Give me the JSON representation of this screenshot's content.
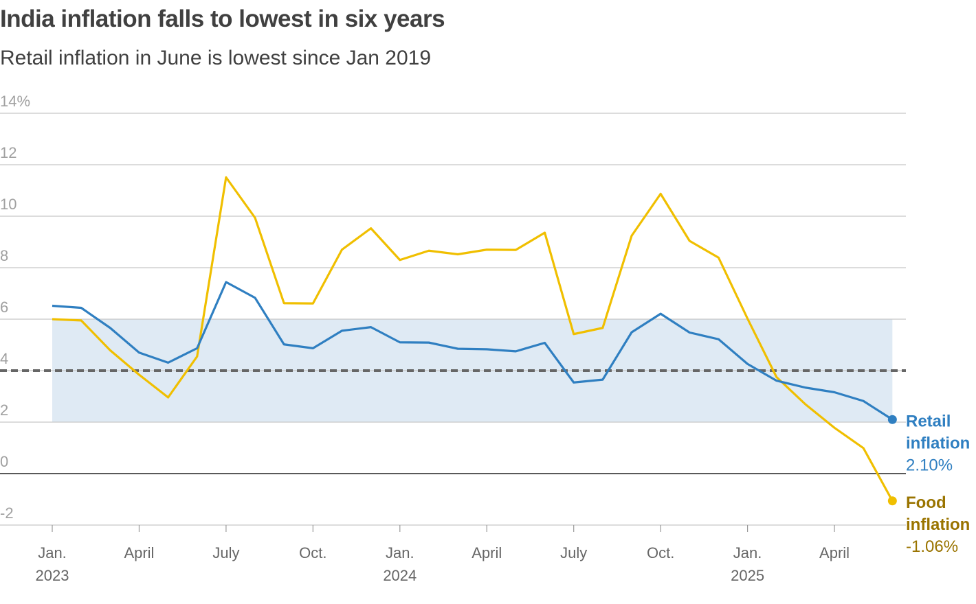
{
  "chart_data": {
    "type": "line",
    "title": "India inflation falls to lowest in six years",
    "subtitle": "Retail inflation in June is lowest since Jan 2019",
    "x": [
      "2023-01",
      "2023-02",
      "2023-03",
      "2023-04",
      "2023-05",
      "2023-06",
      "2023-07",
      "2023-08",
      "2023-09",
      "2023-10",
      "2023-11",
      "2023-12",
      "2024-01",
      "2024-02",
      "2024-03",
      "2024-04",
      "2024-05",
      "2024-06",
      "2024-07",
      "2024-08",
      "2024-09",
      "2024-10",
      "2024-11",
      "2024-12",
      "2025-01",
      "2025-02",
      "2025-03",
      "2025-04",
      "2025-05",
      "2025-06"
    ],
    "x_ticks": [
      {
        "month": 0,
        "label": "Jan.",
        "year": "2023"
      },
      {
        "month": 3,
        "label": "April",
        "year": ""
      },
      {
        "month": 6,
        "label": "July",
        "year": ""
      },
      {
        "month": 9,
        "label": "Oct.",
        "year": ""
      },
      {
        "month": 12,
        "label": "Jan.",
        "year": "2024"
      },
      {
        "month": 15,
        "label": "April",
        "year": ""
      },
      {
        "month": 18,
        "label": "July",
        "year": ""
      },
      {
        "month": 21,
        "label": "Oct.",
        "year": ""
      },
      {
        "month": 24,
        "label": "Jan.",
        "year": "2025"
      },
      {
        "month": 27,
        "label": "April",
        "year": ""
      }
    ],
    "y_ticks": [
      "-2",
      "0",
      "2",
      "4",
      "6",
      "8",
      "10",
      "12",
      "14%"
    ],
    "ylim": [
      -2,
      14
    ],
    "grid": true,
    "band": {
      "from": 2,
      "to": 6,
      "color": "#dfeaf4"
    },
    "reference_line": {
      "value": 4,
      "style": "dashed",
      "color": "#666666"
    },
    "series": [
      {
        "name": "Retail inflation",
        "end_label": "2.10%",
        "color": "#2f7fc1",
        "label_color": "#2f7fc1",
        "values": [
          6.52,
          6.44,
          5.66,
          4.7,
          4.31,
          4.87,
          7.44,
          6.83,
          5.02,
          4.87,
          5.55,
          5.69,
          5.1,
          5.09,
          4.85,
          4.83,
          4.75,
          5.08,
          3.54,
          3.65,
          5.49,
          6.21,
          5.48,
          5.22,
          4.26,
          3.61,
          3.34,
          3.16,
          2.82,
          2.1
        ]
      },
      {
        "name": "Food inflation",
        "end_label": "-1.06%",
        "color": "#f0bf00",
        "label_color": "#9a7400",
        "values": [
          6.0,
          5.95,
          4.79,
          3.84,
          2.96,
          4.55,
          11.51,
          9.94,
          6.62,
          6.61,
          8.7,
          9.53,
          8.3,
          8.66,
          8.52,
          8.7,
          8.69,
          9.36,
          5.42,
          5.66,
          9.24,
          10.87,
          9.04,
          8.39,
          6.02,
          3.75,
          2.69,
          1.78,
          0.99,
          -1.06
        ]
      }
    ]
  }
}
